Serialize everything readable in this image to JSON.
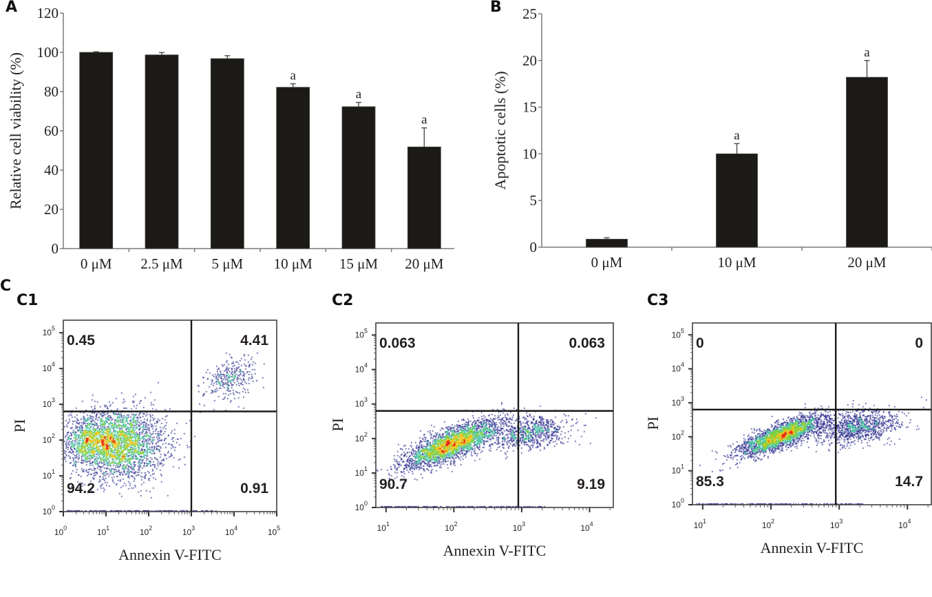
{
  "panels": {
    "A": "A",
    "B": "B",
    "C": "C",
    "C1": "C1",
    "C2": "C2",
    "C3": "C3"
  },
  "colors": {
    "bar": "#1c1a17",
    "axis": "#7a7a7a",
    "quadrant_line": "#1a1a1a",
    "density_low": "#2b2b8f",
    "density_mid": "#3fbfa0",
    "density_high": "#e62a1a"
  },
  "chart_data": [
    {
      "id": "A",
      "type": "bar",
      "title": "",
      "xlabel": "",
      "ylabel": "Relative cell viability (%)",
      "categories": [
        "0 μM",
        "2.5 μM",
        "5 μM",
        "10 μM",
        "15 μM",
        "20 μM"
      ],
      "values": [
        100,
        98.7,
        96.8,
        82.2,
        72.3,
        51.8
      ],
      "errors": [
        0.3,
        1.2,
        1.5,
        1.8,
        2.2,
        9.7
      ],
      "annotations": [
        "",
        "",
        "",
        "a",
        "a",
        "a"
      ],
      "ylim": [
        0,
        120
      ],
      "yticks": [
        0,
        20,
        40,
        60,
        80,
        100,
        120
      ],
      "grid": false
    },
    {
      "id": "B",
      "type": "bar",
      "title": "",
      "xlabel": "",
      "ylabel": "Apoptotic cells (%)",
      "categories": [
        "0 μM",
        "10 μM",
        "20 μM"
      ],
      "values": [
        0.86,
        10.0,
        18.2
      ],
      "errors": [
        0.15,
        1.1,
        1.8
      ],
      "annotations": [
        "",
        "a",
        "a"
      ],
      "ylim": [
        0,
        25
      ],
      "yticks": [
        0,
        5,
        10,
        15,
        20,
        25
      ],
      "grid": false
    },
    {
      "id": "C1",
      "type": "scatter",
      "subtype": "flow cytometry density plot",
      "xlabel": "Annexin V-FITC",
      "ylabel": "PI",
      "xscale": "log",
      "yscale": "log",
      "xlim_exp": [
        0,
        5
      ],
      "ylim_exp": [
        0,
        5
      ],
      "xticks": [
        "10^0",
        "10^1",
        "10^2",
        "10^3",
        "10^4",
        "10^5"
      ],
      "yticks": [
        "10^0",
        "10^1",
        "10^2",
        "10^3",
        "10^4",
        "10^5"
      ],
      "gate_x_exp": 3,
      "gate_y_exp": 2.8,
      "quadrants": {
        "upper_left": "0.45",
        "upper_right": "4.41",
        "lower_left": "94.2",
        "lower_right": "0.91"
      },
      "clusters": [
        {
          "cx_exp": 1.3,
          "cy_exp": 1.9,
          "sx": 0.55,
          "sy": 0.5,
          "n": 2600,
          "corr": 0.0
        },
        {
          "cx_exp": 0.6,
          "cy_exp": 2.0,
          "sx": 0.35,
          "sy": 0.3,
          "n": 700,
          "corr": 0.0
        },
        {
          "cx_exp": 3.9,
          "cy_exp": 3.75,
          "sx": 0.3,
          "sy": 0.3,
          "n": 320,
          "corr": 0.4
        }
      ]
    },
    {
      "id": "C2",
      "type": "scatter",
      "subtype": "flow cytometry density plot",
      "xlabel": "Annexin V-FITC",
      "ylabel": "PI",
      "xscale": "log",
      "yscale": "log",
      "xlim_exp": [
        0.85,
        4.35
      ],
      "ylim_exp": [
        0,
        5
      ],
      "xticks": [
        "10^1",
        "10^2",
        "10^3",
        "10^4"
      ],
      "yticks": [
        "10^0",
        "10^1",
        "10^2",
        "10^3",
        "10^4",
        "10^5"
      ],
      "gate_x_exp": 2.95,
      "gate_y_exp": 2.8,
      "quadrants": {
        "upper_left": "0.063",
        "upper_right": "0.063",
        "lower_left": "90.7",
        "lower_right": "9.19"
      },
      "clusters": [
        {
          "cx_exp": 1.95,
          "cy_exp": 1.85,
          "sx": 0.35,
          "sy": 0.35,
          "n": 2600,
          "corr": 0.75
        },
        {
          "cx_exp": 3.1,
          "cy_exp": 2.2,
          "sx": 0.3,
          "sy": 0.25,
          "n": 800,
          "corr": 0.2
        }
      ]
    },
    {
      "id": "C3",
      "type": "scatter",
      "subtype": "flow cytometry density plot",
      "xlabel": "Annexin V-FITC",
      "ylabel": "PI",
      "xscale": "log",
      "yscale": "log",
      "xlim_exp": [
        0.85,
        4.35
      ],
      "ylim_exp": [
        0,
        5
      ],
      "xticks": [
        "10^1",
        "10^2",
        "10^3",
        "10^4"
      ],
      "yticks": [
        "10^0",
        "10^1",
        "10^2",
        "10^3",
        "10^4",
        "10^5"
      ],
      "gate_x_exp": 2.95,
      "gate_y_exp": 2.8,
      "quadrants": {
        "upper_left": "0",
        "upper_right": "0",
        "lower_left": "85.3",
        "lower_right": "14.7"
      },
      "clusters": [
        {
          "cx_exp": 2.15,
          "cy_exp": 2.05,
          "sx": 0.32,
          "sy": 0.3,
          "n": 2400,
          "corr": 0.8
        },
        {
          "cx_exp": 3.25,
          "cy_exp": 2.3,
          "sx": 0.3,
          "sy": 0.25,
          "n": 1000,
          "corr": 0.3
        }
      ]
    }
  ]
}
